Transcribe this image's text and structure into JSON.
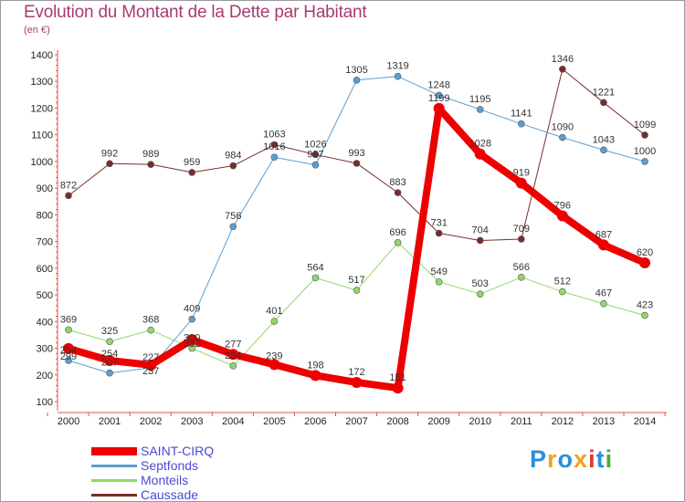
{
  "chart_data": {
    "type": "line",
    "title": "Evolution du Montant de la Dette par Habitant",
    "subtitle": "(en €)",
    "x": [
      "2000",
      "2001",
      "2002",
      "2003",
      "2004",
      "2005",
      "2006",
      "2007",
      "2008",
      "2009",
      "2010",
      "2011",
      "2012",
      "2013",
      "2014"
    ],
    "ylim": [
      100,
      1400
    ],
    "yticks": [
      100,
      200,
      300,
      400,
      500,
      600,
      700,
      800,
      900,
      1000,
      1100,
      1200,
      1300,
      1400
    ],
    "grid": false,
    "legend_position": "bottom-left",
    "series": [
      {
        "name": "SAINT-CIRQ",
        "color": "#ee0000",
        "width": 8,
        "values": [
          299,
          254,
          237,
          332,
          277,
          239,
          198,
          172,
          151,
          1199,
          1028,
          919,
          796,
          687,
          620
        ]
      },
      {
        "name": "Septfonds",
        "color": "#5a9fd4",
        "width": 1,
        "values": [
          254,
          207,
          227,
          409,
          756,
          1016,
          987,
          1305,
          1319,
          1248,
          1195,
          1141,
          1090,
          1043,
          1000
        ]
      },
      {
        "name": "Monteils",
        "color": "#90d86a",
        "width": 1,
        "values": [
          369,
          325,
          368,
          300,
          234,
          401,
          564,
          517,
          696,
          549,
          503,
          566,
          512,
          467,
          423
        ]
      },
      {
        "name": "Caussade",
        "color": "#7a2c2c",
        "width": 1,
        "values": [
          872,
          992,
          989,
          959,
          984,
          1063,
          1026,
          993,
          883,
          731,
          704,
          709,
          1346,
          1221,
          1099
        ]
      }
    ]
  },
  "logo": {
    "text": "Proxiti",
    "colors": [
      "#2a8fd8",
      "#f0a020",
      "#2a8fd8",
      "#f0a020",
      "#e23a2a",
      "#2a8fd8",
      "#4aa83a"
    ]
  }
}
